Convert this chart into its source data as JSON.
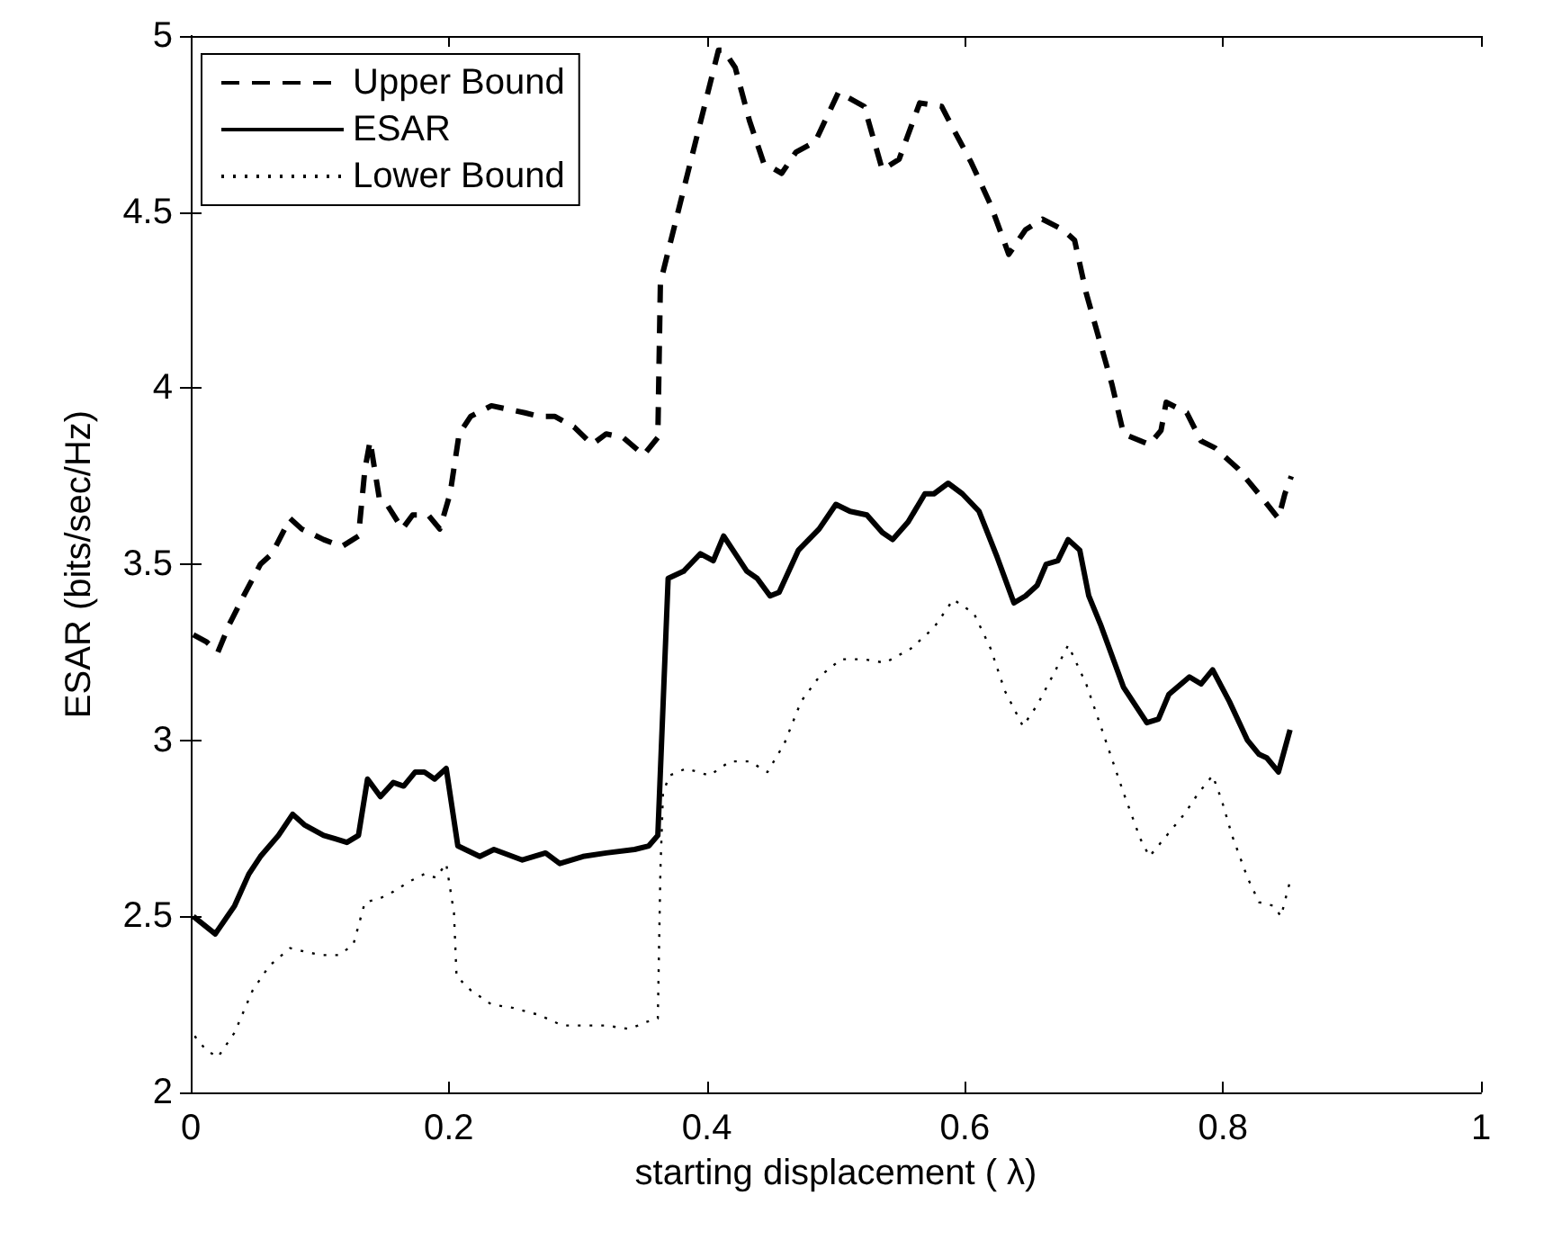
{
  "chart_data": {
    "type": "line",
    "xlabel": "starting displacement ( λ)",
    "ylabel": "ESAR (bits/sec/Hz)",
    "xlim": [
      0,
      1
    ],
    "xticks": [
      0,
      0.2,
      0.4,
      0.6,
      0.8,
      1
    ],
    "ylim": [
      2,
      5
    ],
    "yticks": [
      2,
      2.5,
      3,
      3.5,
      4,
      4.5,
      5
    ],
    "grid": false,
    "legend": "top left",
    "marker": "none",
    "series": [
      {
        "name": "Upper Bound",
        "color": "#000000",
        "line_style": "dashed",
        "x": [
          0.002,
          0.012,
          0.021,
          0.03,
          0.041,
          0.054,
          0.063,
          0.077,
          0.086,
          0.103,
          0.117,
          0.13,
          0.135,
          0.139,
          0.146,
          0.152,
          0.164,
          0.172,
          0.184,
          0.193,
          0.201,
          0.208,
          0.217,
          0.233,
          0.246,
          0.259,
          0.27,
          0.282,
          0.297,
          0.311,
          0.322,
          0.335,
          0.351,
          0.362,
          0.364,
          0.409,
          0.413,
          0.422,
          0.433,
          0.444,
          0.458,
          0.469,
          0.484,
          0.502,
          0.522,
          0.536,
          0.549,
          0.565,
          0.582,
          0.589,
          0.605,
          0.62,
          0.634,
          0.647,
          0.66,
          0.676,
          0.685,
          0.694,
          0.714,
          0.723,
          0.743,
          0.752,
          0.756,
          0.772,
          0.783,
          0.794,
          0.812,
          0.83,
          0.843,
          0.848,
          0.853
        ],
        "values": [
          3.3,
          3.28,
          3.25,
          3.33,
          3.41,
          3.5,
          3.53,
          3.63,
          3.6,
          3.57,
          3.55,
          3.58,
          3.77,
          3.85,
          3.69,
          3.67,
          3.6,
          3.64,
          3.64,
          3.6,
          3.7,
          3.87,
          3.92,
          3.95,
          3.94,
          3.93,
          3.92,
          3.92,
          3.89,
          3.84,
          3.87,
          3.86,
          3.81,
          3.86,
          4.3,
          4.96,
          4.96,
          4.91,
          4.76,
          4.64,
          4.61,
          4.67,
          4.7,
          4.84,
          4.8,
          4.62,
          4.65,
          4.81,
          4.8,
          4.75,
          4.64,
          4.52,
          4.38,
          4.45,
          4.48,
          4.45,
          4.42,
          4.27,
          4.01,
          3.87,
          3.84,
          3.88,
          3.96,
          3.93,
          3.85,
          3.83,
          3.77,
          3.69,
          3.63,
          3.7,
          3.75
        ]
      },
      {
        "name": "ESAR",
        "color": "#000000",
        "line_style": "solid",
        "x": [
          0.002,
          0.019,
          0.034,
          0.045,
          0.054,
          0.068,
          0.079,
          0.088,
          0.103,
          0.112,
          0.121,
          0.13,
          0.137,
          0.147,
          0.157,
          0.165,
          0.174,
          0.181,
          0.189,
          0.198,
          0.207,
          0.224,
          0.235,
          0.257,
          0.275,
          0.286,
          0.304,
          0.322,
          0.344,
          0.355,
          0.362,
          0.37,
          0.382,
          0.395,
          0.405,
          0.413,
          0.431,
          0.439,
          0.449,
          0.456,
          0.471,
          0.487,
          0.5,
          0.511,
          0.524,
          0.536,
          0.544,
          0.556,
          0.569,
          0.576,
          0.587,
          0.598,
          0.611,
          0.625,
          0.638,
          0.647,
          0.656,
          0.663,
          0.672,
          0.68,
          0.689,
          0.696,
          0.705,
          0.723,
          0.741,
          0.75,
          0.758,
          0.774,
          0.783,
          0.792,
          0.805,
          0.819,
          0.828,
          0.834,
          0.843,
          0.852
        ],
        "values": [
          2.5,
          2.45,
          2.53,
          2.62,
          2.67,
          2.73,
          2.79,
          2.76,
          2.73,
          2.72,
          2.71,
          2.73,
          2.89,
          2.84,
          2.88,
          2.87,
          2.91,
          2.91,
          2.89,
          2.92,
          2.7,
          2.67,
          2.69,
          2.66,
          2.68,
          2.65,
          2.67,
          2.68,
          2.69,
          2.7,
          2.73,
          3.46,
          3.48,
          3.53,
          3.51,
          3.58,
          3.48,
          3.46,
          3.41,
          3.42,
          3.54,
          3.6,
          3.67,
          3.65,
          3.64,
          3.59,
          3.57,
          3.62,
          3.7,
          3.7,
          3.73,
          3.7,
          3.65,
          3.52,
          3.39,
          3.41,
          3.44,
          3.5,
          3.51,
          3.57,
          3.54,
          3.41,
          3.33,
          3.15,
          3.05,
          3.06,
          3.13,
          3.18,
          3.16,
          3.2,
          3.11,
          3,
          2.96,
          2.95,
          2.91,
          3.03
        ]
      },
      {
        "name": "Lower Bound",
        "color": "#000000",
        "line_style": "dotted",
        "x": [
          0.003,
          0.012,
          0.021,
          0.034,
          0.048,
          0.061,
          0.077,
          0.088,
          0.101,
          0.115,
          0.126,
          0.135,
          0.146,
          0.157,
          0.17,
          0.181,
          0.19,
          0.198,
          0.204,
          0.206,
          0.217,
          0.233,
          0.25,
          0.27,
          0.288,
          0.304,
          0.322,
          0.34,
          0.353,
          0.362,
          0.364,
          0.366,
          0.371,
          0.384,
          0.402,
          0.418,
          0.433,
          0.447,
          0.46,
          0.473,
          0.487,
          0.504,
          0.522,
          0.538,
          0.558,
          0.576,
          0.591,
          0.607,
          0.62,
          0.631,
          0.645,
          0.656,
          0.669,
          0.68,
          0.694,
          0.709,
          0.723,
          0.736,
          0.743,
          0.752,
          0.77,
          0.781,
          0.792,
          0.799,
          0.807,
          0.819,
          0.828,
          0.839,
          0.845,
          0.852
        ],
        "values": [
          2.16,
          2.12,
          2.1,
          2.17,
          2.29,
          2.36,
          2.41,
          2.4,
          2.39,
          2.39,
          2.42,
          2.54,
          2.55,
          2.57,
          2.6,
          2.62,
          2.61,
          2.65,
          2.51,
          2.33,
          2.29,
          2.25,
          2.24,
          2.22,
          2.19,
          2.19,
          2.19,
          2.18,
          2.2,
          2.21,
          2.63,
          2.85,
          2.9,
          2.92,
          2.9,
          2.94,
          2.94,
          2.91,
          2.99,
          3.11,
          3.18,
          3.23,
          3.23,
          3.22,
          3.26,
          3.32,
          3.4,
          3.36,
          3.26,
          3.14,
          3.04,
          3.1,
          3.19,
          3.27,
          3.16,
          3,
          2.85,
          2.72,
          2.67,
          2.71,
          2.79,
          2.85,
          2.9,
          2.83,
          2.73,
          2.61,
          2.54,
          2.53,
          2.5,
          2.6
        ]
      }
    ]
  }
}
